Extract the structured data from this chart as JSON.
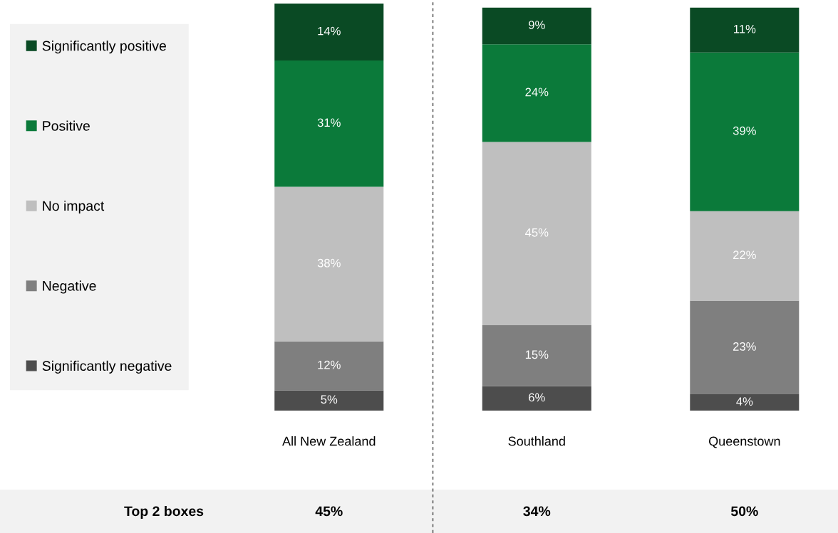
{
  "chart_data": {
    "type": "bar",
    "stacked": true,
    "legend": "left",
    "grid": false,
    "categories": [
      "All New Zealand",
      "Southland",
      "Queenstown"
    ],
    "series": [
      {
        "name": "Significantly negative",
        "color": "#4d4d4d",
        "values": [
          5,
          6,
          4
        ],
        "value_labels": [
          "5%",
          "6%",
          "4%"
        ]
      },
      {
        "name": "Negative",
        "color": "#7f7f7f",
        "values": [
          12,
          15,
          23
        ],
        "value_labels": [
          "12%",
          "15%",
          "23%"
        ]
      },
      {
        "name": "No impact",
        "color": "#bfbfbf",
        "values": [
          38,
          45,
          22
        ],
        "value_labels": [
          "38%",
          "45%",
          "22%"
        ]
      },
      {
        "name": "Positive",
        "color": "#0b7a3a",
        "values": [
          31,
          24,
          39
        ],
        "value_labels": [
          "31%",
          "24%",
          "39%"
        ]
      },
      {
        "name": "Significantly positive",
        "color": "#0a4a24",
        "values": [
          14,
          9,
          11
        ],
        "value_labels": [
          "14%",
          "9%",
          "11%"
        ]
      }
    ],
    "annotations": [
      "Top 2 boxes",
      "45%",
      "34%",
      "50%"
    ]
  }
}
